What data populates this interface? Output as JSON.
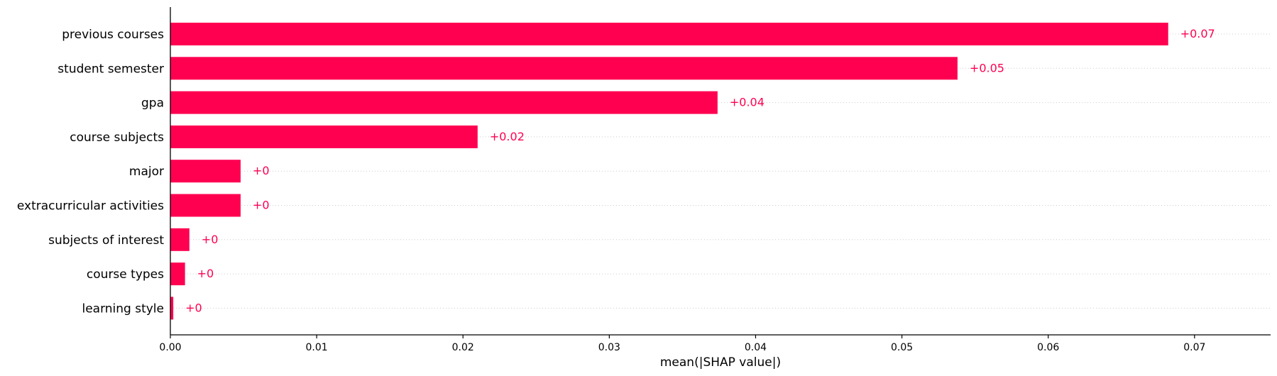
{
  "chart_data": {
    "type": "bar",
    "orientation": "horizontal",
    "title": "",
    "xlabel": "mean(|SHAP value|)",
    "ylabel": "",
    "xlim": [
      0,
      0.0752
    ],
    "grid": "dotted horizontal guide lines",
    "bar_color": "#ff0051",
    "categories": [
      "previous courses",
      "student semester",
      "gpa",
      "course subjects",
      "major",
      "extracurricular activities",
      "subjects of interest",
      "course types",
      "learning style"
    ],
    "values": [
      0.0682,
      0.0538,
      0.0374,
      0.021,
      0.0048,
      0.0048,
      0.0013,
      0.001,
      0.0002
    ],
    "data_labels": [
      "+0.07",
      "+0.05",
      "+0.04",
      "+0.02",
      "+0",
      "+0",
      "+0",
      "+0",
      "+0"
    ],
    "x_ticks": [
      "0.00",
      "0.01",
      "0.02",
      "0.03",
      "0.04",
      "0.05",
      "0.06",
      "0.07"
    ]
  }
}
